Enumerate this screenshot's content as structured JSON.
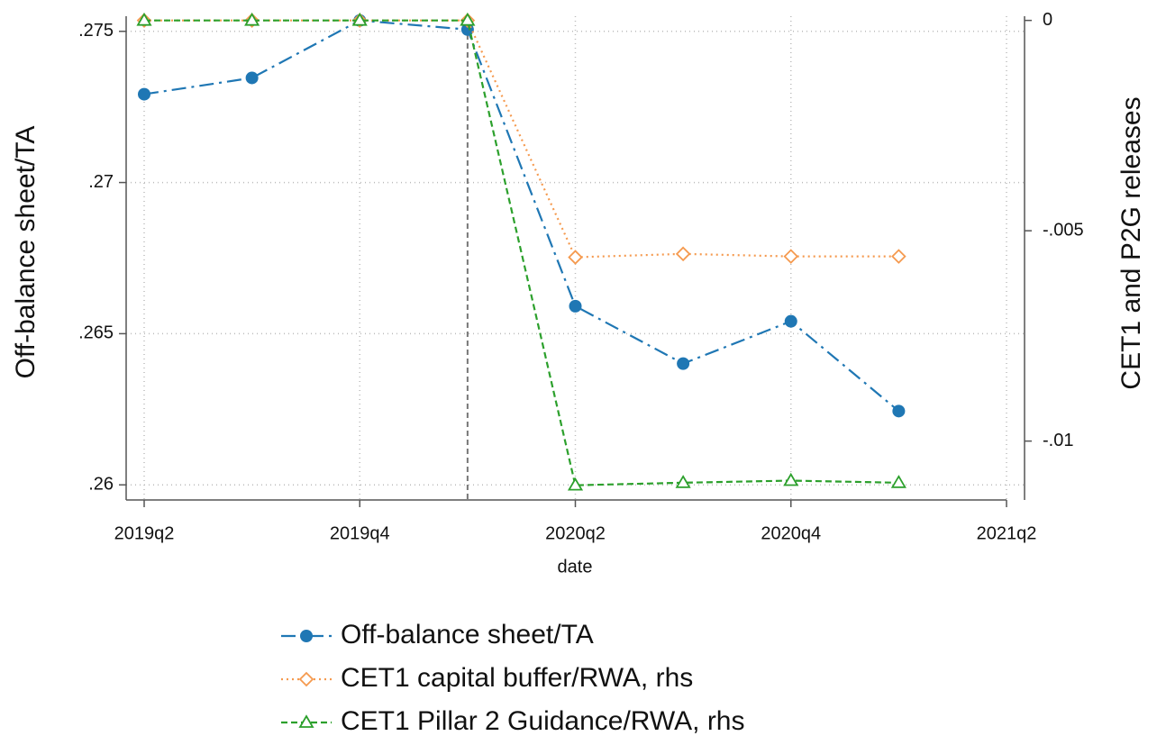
{
  "chart_data": {
    "type": "line",
    "xlabel": "date",
    "ylabel": "Off-balance sheet/TA",
    "y2label": "CET1 and P2G releases",
    "categories": [
      "2019q2",
      null,
      "2019q4",
      null,
      "2020q2",
      null,
      "2020q4",
      null,
      "2021q2"
    ],
    "ylim": [
      0.2595,
      0.2755
    ],
    "yticks": [
      {
        "value": 0.26,
        "label": ".26"
      },
      {
        "value": 0.265,
        "label": ".265"
      },
      {
        "value": 0.27,
        "label": ".27"
      },
      {
        "value": 0.275,
        "label": ".275"
      }
    ],
    "y2lim": [
      -0.0114,
      0.0001
    ],
    "y2ticks": [
      {
        "value": -0.01,
        "label": "-.01"
      },
      {
        "value": -0.005,
        "label": "-.005"
      },
      0
    ],
    "grid": true,
    "vline_at": 3,
    "series": [
      {
        "name": "Off-balance sheet/TA",
        "color": "#1f77b4",
        "marker": "circle",
        "dash": "16 6 3 6",
        "values": [
          0.27292,
          0.27346,
          0.27536,
          0.27506,
          0.26591,
          0.26401,
          0.26541,
          0.26244,
          null
        ]
      },
      {
        "name": "CET1 capital buffer/RWA, rhs",
        "color": "#f59a4f",
        "marker": "diamond",
        "dash": "2 4",
        "axis": "y2",
        "values": [
          0,
          0,
          0,
          0,
          -0.00563,
          -0.00555,
          -0.00561,
          -0.00561,
          null
        ]
      },
      {
        "name": "CET1 Pillar 2 Guidance/RWA, rhs",
        "color": "#2ca02c",
        "marker": "triangle",
        "dash": "7 4",
        "axis": "y2",
        "values": [
          0,
          0,
          0,
          0,
          -0.01105,
          -0.01099,
          -0.01094,
          -0.01099,
          null
        ]
      }
    ]
  }
}
